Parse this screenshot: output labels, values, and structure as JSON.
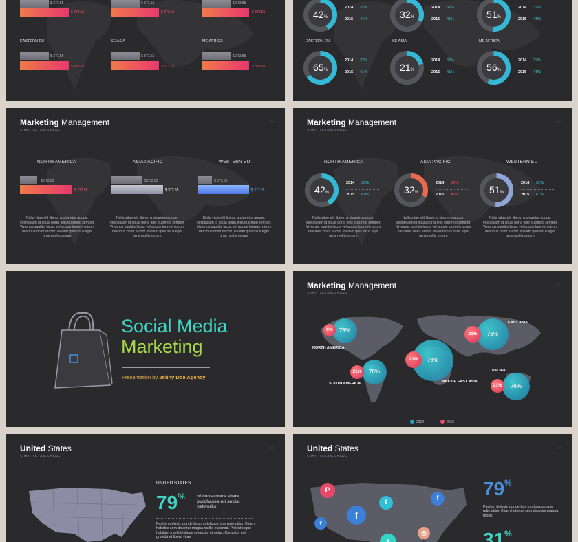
{
  "colors": {
    "slide_bg": "#2a2a2c",
    "page_bg": "#d9d3cc",
    "teal": "#40d4c4",
    "pink": "#ff5468",
    "lime": "#a8d84a",
    "orange": "#f2b34a",
    "blue": "#4a8fd9"
  },
  "slide1": {
    "top_labels": [
      "$ 373.55",
      "$ 373.55",
      "$ 373.55"
    ],
    "top_red_labels": [
      "$ 373.55",
      "$ 373.55",
      "$ 373.55"
    ],
    "regions": [
      "EASTERN EU",
      "SE ASIA",
      "ME AFRICA"
    ],
    "gray_labels": [
      "$ 373.55",
      "$ 373.55",
      "$ 373.55"
    ],
    "red_labels": [
      "$ 373.55",
      "$ 373.55",
      "$ 373.55"
    ]
  },
  "slide2": {
    "top": [
      {
        "value": "42",
        "unit": "%",
        "y1": "2014",
        "p1": "32%",
        "y2": "2015",
        "p2": "41%"
      },
      {
        "value": "32",
        "unit": "%",
        "y1": "2014",
        "p1": "32%",
        "y2": "2015",
        "p2": "41%"
      },
      {
        "value": "51",
        "unit": "%",
        "y1": "2014",
        "p1": "32%",
        "y2": "2015",
        "p2": "41%"
      }
    ],
    "bottom": [
      {
        "region": "EASTERN EU",
        "value": "65",
        "unit": "%",
        "y1": "2014",
        "p1": "32%",
        "y2": "2015",
        "p2": "41%"
      },
      {
        "region": "SE ASIA",
        "value": "21",
        "unit": "%",
        "y1": "2014",
        "p1": "32%",
        "y2": "2015",
        "p2": "41%"
      },
      {
        "region": "ME AFRICA",
        "value": "56",
        "unit": "%",
        "y1": "2014",
        "p1": "32%",
        "y2": "2015",
        "p2": "41%"
      }
    ]
  },
  "slide3": {
    "title_bold": "Marketing",
    "title_rest": " Management",
    "subtitle": "SUBTITLE GOES HERE",
    "page": "35",
    "cols": [
      {
        "region": "NORTH AMERICA",
        "gray": "$ 373.55",
        "main": "$ 373.55"
      },
      {
        "region": "ASIA PACIFIC",
        "gray": "$ 373.55",
        "main": "$ 373.55"
      },
      {
        "region": "WESTERN EU",
        "gray": "$ 373.55",
        "main": "$ 373.55"
      }
    ],
    "para": "Nulla vitae elit libero, a pharetra augue. Vestibulum id ligula porta felis euismod semper. Vivamus sagittis lacus vel augue laoreet rutrum faucibus dolor auctor. Nullam quis risus eget urna mollis ornare"
  },
  "slide4": {
    "title_bold": "Marketing",
    "title_rest": " Management",
    "subtitle": "SUBTITLE GOES HERE",
    "page": "36",
    "cols": [
      {
        "region": "NORTH AMERICA",
        "value": "42",
        "unit": "%",
        "y1": "2014",
        "p1": "32%",
        "y2": "2015",
        "p2": "41%"
      },
      {
        "region": "ASIA PACIFIC",
        "value": "32",
        "unit": "%",
        "y1": "2014",
        "p1": "32%",
        "y2": "2015",
        "p2": "41%"
      },
      {
        "region": "WESTERN EU",
        "value": "51",
        "unit": "%",
        "y1": "2014",
        "p1": "32%",
        "y2": "2015",
        "p2": "41%"
      }
    ],
    "para": "Nulla vitae elit libero, a pharetra augue. Vestibulum id ligula porta felis euismod semper. Vivamus sagittis lacus vel augue laoreet rutrum faucibus dolor auctor. Nullam quis risus eget urna mollis ornare"
  },
  "slide5": {
    "title1": "Social Media",
    "title2": "Marketing",
    "pres_prefix": "Presentation by ",
    "agency": "Johny Doe Agency"
  },
  "slide6": {
    "title_bold": "Marketing",
    "title_rest": " Management",
    "subtitle": "SUBTITLE GOES HERE",
    "page": "37",
    "bubbles": [
      {
        "label": "NORTH AMERICA",
        "small": "6%",
        "big": "76%"
      },
      {
        "label": "SOUTH AMERICA",
        "small": "21%",
        "big": "76%"
      },
      {
        "label": "MIDDLE EAST ASIA",
        "small": "21%",
        "big": "76%"
      },
      {
        "label": "EAST ASIA",
        "small": "21%",
        "big": "76%"
      },
      {
        "label": "PACIFIC",
        "small": "21%",
        "big": "76%"
      }
    ],
    "legend": [
      "2014",
      "2015"
    ]
  },
  "slide7": {
    "title_bold": "United",
    "title_rest": " States",
    "subtitle": "SUBTITLE GOES HERE",
    "page": "38",
    "label": "UNITED STATES",
    "pct": "79",
    "unit": "%",
    "desc": "of consumers share purchases on social networks",
    "body": "Paulum delquit, ponderbus modulaque suis ratio utitur. Etiam habebis sem dicantur magna mollis euismod. Pellentesque habitant morbi tristique senectus et netus. Curabitur est gravida et libero vitae"
  },
  "slide8": {
    "title_bold": "United",
    "title_rest": " States",
    "subtitle": "SUBTITLE GOES HERE",
    "page": "39",
    "pct1": "79",
    "unit": "%",
    "body": "Paulum delquit, ponderbus modulaque suis ratio utitur. Etiam habebis sem dicantur magna mollis",
    "pct2": "31",
    "icons": [
      "pinterest-icon",
      "facebook-icon",
      "twitter-icon",
      "facebook-icon",
      "facebook-icon",
      "instagram-icon",
      "twitter-icon"
    ]
  }
}
